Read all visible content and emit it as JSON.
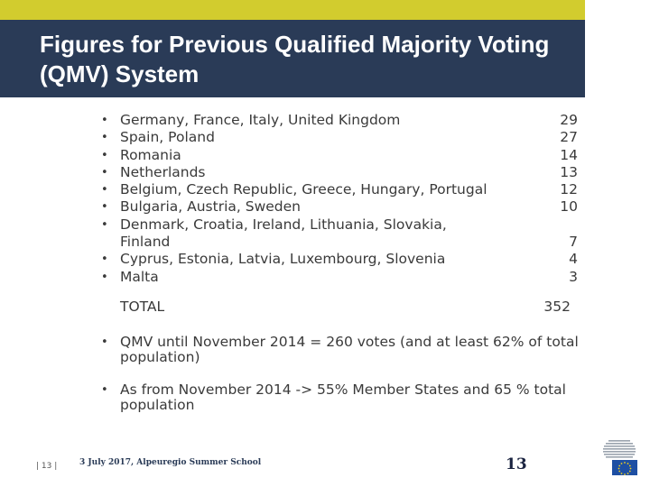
{
  "slide": {
    "title": "Figures for Previous Qualified Majority Voting (QMV) System"
  },
  "list": [
    {
      "label": "Germany, France, Italy, United Kingdom",
      "value": "29"
    },
    {
      "label": "Spain, Poland",
      "value": "27"
    },
    {
      "label": "Romania",
      "value": "14"
    },
    {
      "label": "Netherlands",
      "value": "13"
    },
    {
      "label": "Belgium, Czech Republic, Greece, Hungary, Portugal",
      "value": "12"
    },
    {
      "label": "Bulgaria, Austria, Sweden",
      "value": "10"
    },
    {
      "label": "Denmark, Croatia, Ireland, Lithuania, Slovakia,",
      "label2": "Finland",
      "value": "7"
    },
    {
      "label": "Cyprus, Estonia, Latvia, Luxembourg, Slovenia",
      "value": "4"
    },
    {
      "label": "Malta",
      "value": "3"
    }
  ],
  "total": {
    "label": "TOTAL",
    "value": "352"
  },
  "notes": [
    "QMV until November 2014 = 260 votes (and at least 62% of total population)",
    "As from November 2014 -> 55% Member States and 65 % total population"
  ],
  "footer": {
    "page_marker": "| 13 |",
    "date_event": "3 July 2017, Alpeuregio Summer School",
    "slide_number": "13"
  },
  "colors": {
    "accent": "#d2cc2e",
    "title_band": "#2a3b57"
  },
  "icons": {
    "bullet": "•",
    "logo": "eu-commission-logo-icon"
  }
}
